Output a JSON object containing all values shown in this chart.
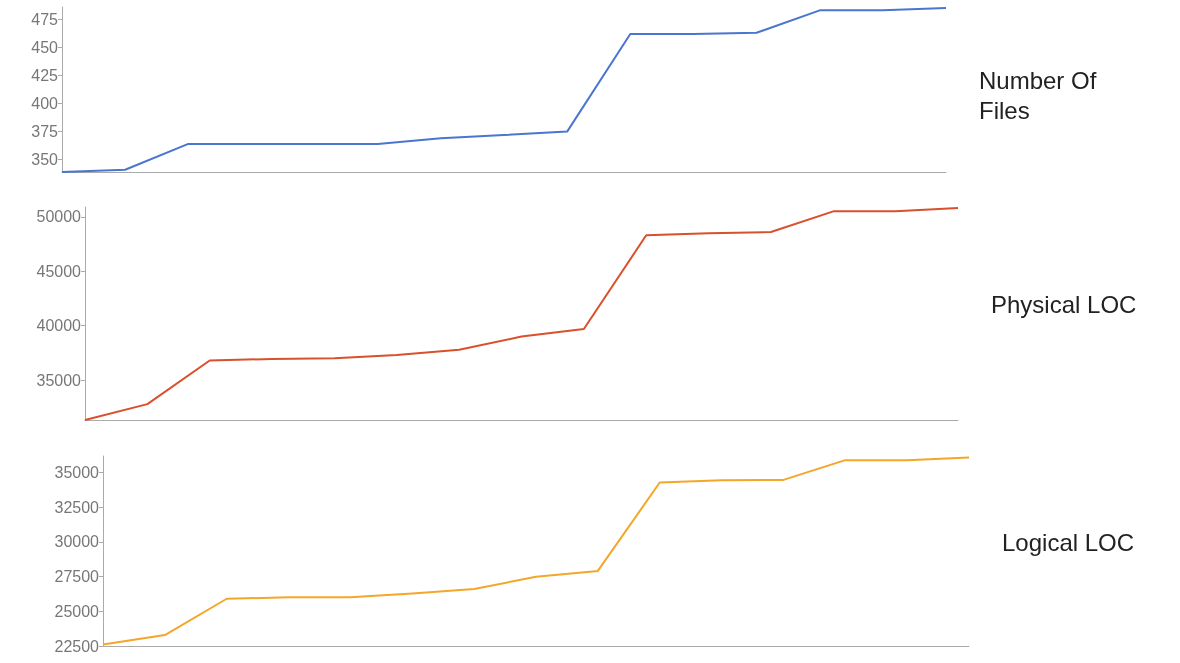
{
  "chart_data": [
    {
      "type": "line",
      "categories": [
        null,
        null,
        null,
        null,
        null,
        null,
        null,
        null,
        null,
        null,
        null,
        null,
        null,
        null,
        null
      ],
      "series": [
        {
          "name": "Number Of\nFiles",
          "color": "#4a76cf",
          "values": [
            339,
            341,
            364,
            364,
            364,
            364,
            369,
            372,
            375,
            462,
            462,
            463,
            483,
            483,
            485
          ]
        }
      ],
      "ylim": [
        339,
        486
      ],
      "yticks": [
        350,
        375,
        400,
        425,
        450,
        475
      ],
      "grid": false,
      "tick_labels": "y",
      "legend": false,
      "marker": "none"
    },
    {
      "type": "line",
      "categories": [
        null,
        null,
        null,
        null,
        null,
        null,
        null,
        null,
        null,
        null,
        null,
        null,
        null,
        null,
        null
      ],
      "series": [
        {
          "name": "Physical LOC",
          "color": "#d9502b",
          "values": [
            31340,
            32800,
            36800,
            36950,
            37000,
            37300,
            37800,
            39000,
            39700,
            48300,
            48500,
            48600,
            50500,
            50500,
            50800
          ]
        }
      ],
      "ylim": [
        31340,
        50900
      ],
      "yticks": [
        35000,
        40000,
        45000,
        50000
      ],
      "grid": false,
      "tick_labels": "y",
      "legend": false,
      "marker": "none"
    },
    {
      "type": "line",
      "categories": [
        null,
        null,
        null,
        null,
        null,
        null,
        null,
        null,
        null,
        null,
        null,
        null,
        null,
        null,
        null
      ],
      "series": [
        {
          "name": "Logical LOC",
          "color": "#f4a62a",
          "values": [
            22600,
            23290,
            25900,
            26000,
            26000,
            26280,
            26600,
            27480,
            27900,
            34260,
            34420,
            34450,
            35870,
            35870,
            36070
          ]
        }
      ],
      "ylim": [
        22500,
        36170
      ],
      "yticks": [
        22500,
        25000,
        27500,
        30000,
        32500,
        35000
      ],
      "grid": false,
      "tick_labels": "y",
      "legend": false,
      "marker": "none"
    }
  ]
}
